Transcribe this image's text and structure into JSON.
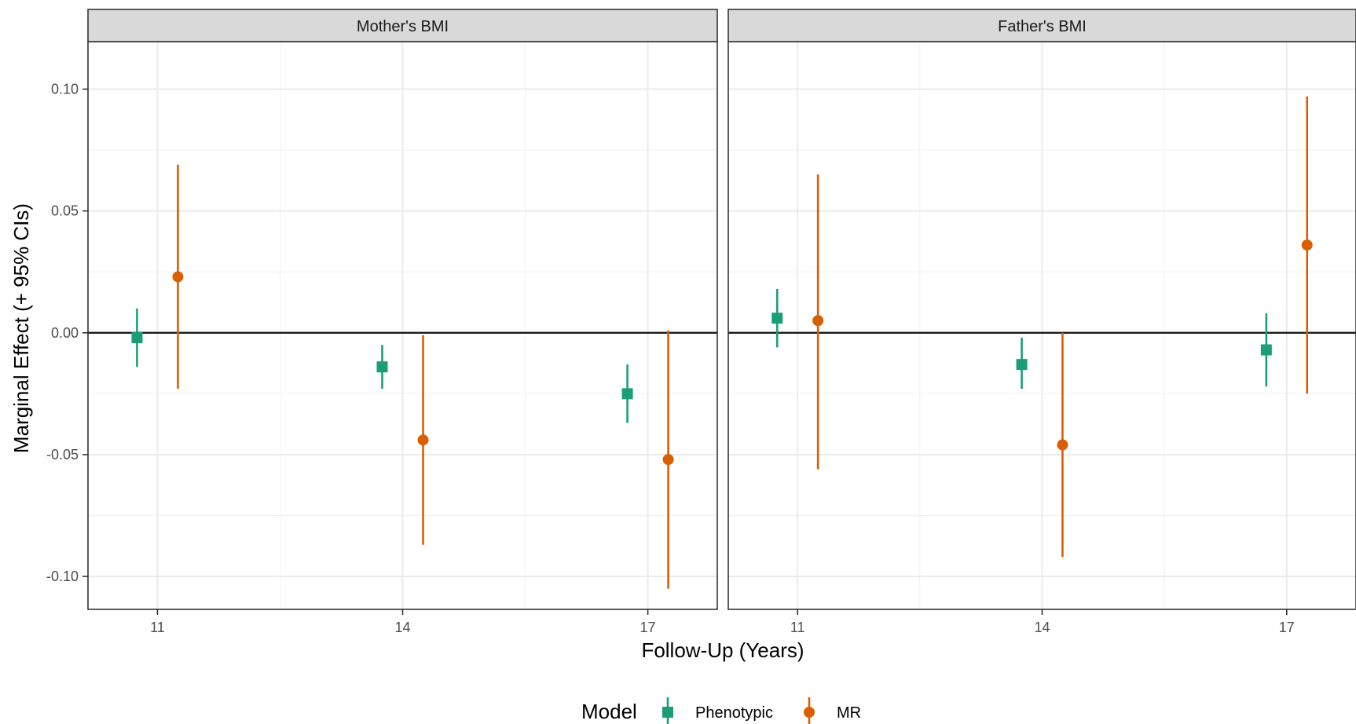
{
  "chart_data": {
    "type": "scatter",
    "subtype": "point-range (facetted)",
    "xlabel": "Follow-Up (Years)",
    "ylabel": "Marginal Effect (+ 95% CIs)",
    "x_ticks": [
      11,
      14,
      17
    ],
    "y_ticks": [
      -0.1,
      -0.05,
      0.0,
      0.05,
      0.1
    ],
    "y_tick_labels": [
      "-0.10",
      "-0.05",
      "0.00",
      "0.05",
      "0.10"
    ],
    "xlim": [
      10.15,
      17.85
    ],
    "ylim": [
      -0.1135,
      0.1195
    ],
    "reference_line_y": 0,
    "grid": true,
    "legend": {
      "title": "Model",
      "position": "bottom",
      "entries": [
        {
          "label": "Phenotypic",
          "color": "#1b9e77",
          "shape": "square"
        },
        {
          "label": "MR",
          "color": "#d95f02",
          "shape": "circle"
        }
      ]
    },
    "series_offset_years": {
      "Phenotypic": -0.25,
      "MR": 0.25
    },
    "panels": [
      {
        "title": "Mother's BMI",
        "series": [
          {
            "name": "Phenotypic",
            "points": [
              {
                "x": 11,
                "y": -0.002,
                "lo": -0.014,
                "hi": 0.01
              },
              {
                "x": 14,
                "y": -0.014,
                "lo": -0.023,
                "hi": -0.005
              },
              {
                "x": 17,
                "y": -0.025,
                "lo": -0.037,
                "hi": -0.013
              }
            ]
          },
          {
            "name": "MR",
            "points": [
              {
                "x": 11,
                "y": 0.023,
                "lo": -0.023,
                "hi": 0.069
              },
              {
                "x": 14,
                "y": -0.044,
                "lo": -0.087,
                "hi": -0.001
              },
              {
                "x": 17,
                "y": -0.052,
                "lo": -0.105,
                "hi": 0.001
              }
            ]
          }
        ]
      },
      {
        "title": "Father's BMI",
        "series": [
          {
            "name": "Phenotypic",
            "points": [
              {
                "x": 11,
                "y": 0.006,
                "lo": -0.006,
                "hi": 0.018
              },
              {
                "x": 14,
                "y": -0.013,
                "lo": -0.023,
                "hi": -0.002
              },
              {
                "x": 17,
                "y": -0.007,
                "lo": -0.022,
                "hi": 0.008
              }
            ]
          },
          {
            "name": "MR",
            "points": [
              {
                "x": 11,
                "y": 0.005,
                "lo": -0.056,
                "hi": 0.065
              },
              {
                "x": 14,
                "y": -0.046,
                "lo": -0.092,
                "hi": 0.0
              },
              {
                "x": 17,
                "y": 0.036,
                "lo": -0.025,
                "hi": 0.097
              }
            ]
          }
        ]
      }
    ]
  }
}
